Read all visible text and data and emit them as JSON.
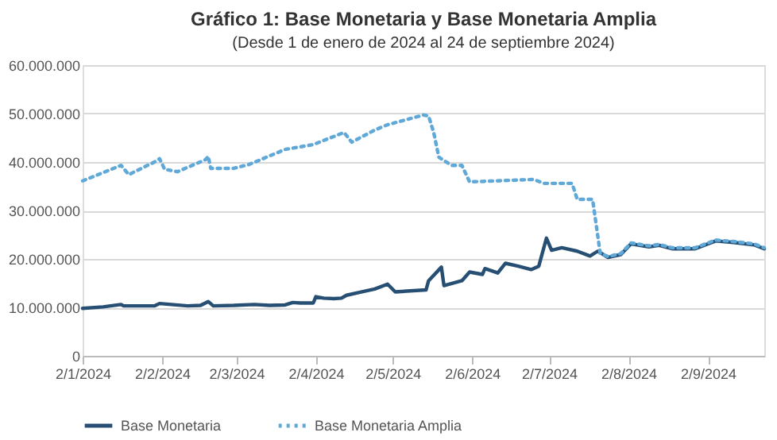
{
  "chart_data": {
    "type": "line",
    "title": "Gráfico 1: Base Monetaria y Base Monetaria Amplia",
    "subtitle": "(Desde 1 de enero de 2024 al 24 de septiembre 2024)",
    "xlim": [
      "2024-01-02",
      "2024-09-24"
    ],
    "xticks": [
      {
        "value": "2024-01-02",
        "label": "2/1/2024"
      },
      {
        "value": "2024-02-02",
        "label": "2/2/2024"
      },
      {
        "value": "2024-03-02",
        "label": "2/3/2024"
      },
      {
        "value": "2024-04-02",
        "label": "2/4/2024"
      },
      {
        "value": "2024-05-02",
        "label": "2/5/2024"
      },
      {
        "value": "2024-06-02",
        "label": "2/6/2024"
      },
      {
        "value": "2024-07-02",
        "label": "2/7/2024"
      },
      {
        "value": "2024-08-02",
        "label": "2/8/2024"
      },
      {
        "value": "2024-09-02",
        "label": "2/9/2024"
      }
    ],
    "ylim": [
      0,
      60000000
    ],
    "yticks": [
      {
        "value": 0,
        "label": "0"
      },
      {
        "value": 10000000,
        "label": "10.000.000"
      },
      {
        "value": 20000000,
        "label": "20.000.000"
      },
      {
        "value": 30000000,
        "label": "30.000.000"
      },
      {
        "value": 40000000,
        "label": "40.000.000"
      },
      {
        "value": 50000000,
        "label": "50.000.000"
      },
      {
        "value": 60000000,
        "label": "60.000.000"
      }
    ],
    "grid": "y",
    "legend": "bottom",
    "series": [
      {
        "name": "Base Monetaria",
        "color": "#264f73",
        "line_style": "solid",
        "x": [
          "2024-01-02",
          "2024-01-10",
          "2024-01-17",
          "2024-01-18",
          "2024-01-30",
          "2024-02-01",
          "2024-02-12",
          "2024-02-17",
          "2024-02-20",
          "2024-02-22",
          "2024-03-01",
          "2024-03-09",
          "2024-03-15",
          "2024-03-21",
          "2024-03-24",
          "2024-03-27",
          "2024-04-01",
          "2024-04-02",
          "2024-04-05",
          "2024-04-09",
          "2024-04-12",
          "2024-04-14",
          "2024-04-19",
          "2024-04-25",
          "2024-04-30",
          "2024-05-03",
          "2024-05-15",
          "2024-05-16",
          "2024-05-21",
          "2024-05-22",
          "2024-05-29",
          "2024-06-01",
          "2024-06-06",
          "2024-06-07",
          "2024-06-12",
          "2024-06-15",
          "2024-06-20",
          "2024-06-25",
          "2024-06-28",
          "2024-07-01",
          "2024-07-03",
          "2024-07-07",
          "2024-07-13",
          "2024-07-18",
          "2024-07-21",
          "2024-07-25",
          "2024-07-30",
          "2024-08-03",
          "2024-08-10",
          "2024-08-14",
          "2024-08-19",
          "2024-08-28",
          "2024-09-05",
          "2024-09-12",
          "2024-09-20",
          "2024-09-24"
        ],
        "values": [
          9800000,
          10100000,
          10600000,
          10300000,
          10300000,
          10800000,
          10300000,
          10400000,
          11200000,
          10300000,
          10400000,
          10600000,
          10400000,
          10500000,
          11000000,
          10900000,
          10900000,
          12200000,
          11900000,
          11800000,
          11900000,
          12500000,
          13100000,
          13800000,
          14800000,
          13200000,
          13600000,
          15500000,
          18300000,
          14500000,
          15500000,
          17300000,
          16800000,
          18000000,
          17100000,
          19100000,
          18500000,
          17800000,
          18500000,
          24300000,
          21800000,
          22300000,
          21600000,
          20600000,
          21600000,
          20300000,
          20900000,
          23100000,
          22500000,
          22800000,
          22100000,
          22100000,
          23700000,
          23400000,
          22900000,
          22100000
        ]
      },
      {
        "name": "Base Monetaria Amplia",
        "color": "#5fa8d8",
        "line_style": "dotted",
        "x": [
          "2024-01-02",
          "2024-01-17",
          "2024-01-20",
          "2024-01-30",
          "2024-02-01",
          "2024-02-03",
          "2024-02-08",
          "2024-02-19",
          "2024-02-20",
          "2024-02-21",
          "2024-03-01",
          "2024-03-07",
          "2024-03-21",
          "2024-04-01",
          "2024-04-13",
          "2024-04-16",
          "2024-04-25",
          "2024-04-30",
          "2024-05-14",
          "2024-05-16",
          "2024-05-18",
          "2024-05-20",
          "2024-05-25",
          "2024-05-29",
          "2024-06-01",
          "2024-06-26",
          "2024-06-30",
          "2024-07-11",
          "2024-07-13",
          "2024-07-19",
          "2024-07-22",
          "2024-07-25",
          "2024-07-30",
          "2024-08-03",
          "2024-08-10",
          "2024-08-14",
          "2024-08-19",
          "2024-08-28",
          "2024-09-05",
          "2024-09-12",
          "2024-09-20",
          "2024-09-24"
        ],
        "values": [
          36100000,
          39300000,
          37400000,
          40000000,
          40700000,
          38500000,
          38000000,
          40500000,
          41200000,
          38700000,
          38700000,
          39500000,
          42600000,
          43600000,
          46100000,
          44100000,
          46600000,
          47700000,
          49700000,
          49500000,
          46100000,
          41000000,
          39300000,
          39300000,
          35900000,
          36400000,
          35600000,
          35600000,
          32300000,
          32300000,
          21100000,
          20500000,
          21100000,
          23300000,
          22700000,
          23000000,
          22300000,
          22300000,
          23900000,
          23600000,
          23100000,
          22300000
        ]
      }
    ]
  }
}
